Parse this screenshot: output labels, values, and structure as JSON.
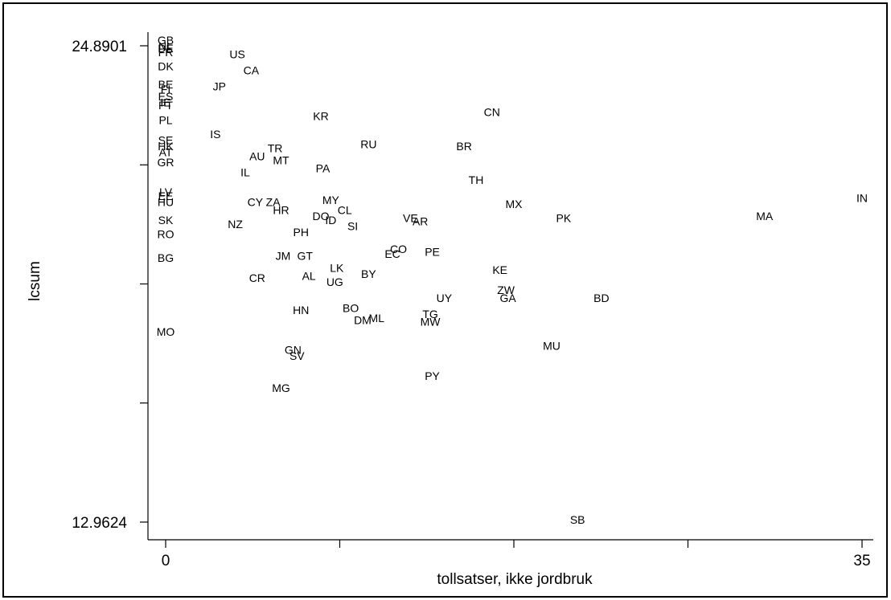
{
  "chart_data": {
    "type": "scatter",
    "title": "",
    "xlabel": "tollsatser, ikke jordbruk",
    "ylabel": "lcsum",
    "xlim": [
      0,
      35
    ],
    "ylim": [
      12.9624,
      24.8901
    ],
    "x_ticks": [
      0,
      35
    ],
    "x_tick_labels": [
      "0",
      "35"
    ],
    "y_ticks": [
      12.9624,
      24.8901
    ],
    "y_tick_labels": [
      "12.9624",
      "24.8901"
    ],
    "grid": false,
    "legend": "none",
    "points": [
      {
        "label": "GB",
        "x": 0.0,
        "y": 25.0
      },
      {
        "label": "NL",
        "x": 0.0,
        "y": 24.85
      },
      {
        "label": "DE",
        "x": 0.0,
        "y": 24.8
      },
      {
        "label": "FR",
        "x": 0.0,
        "y": 24.7
      },
      {
        "label": "DK",
        "x": 0.0,
        "y": 24.35
      },
      {
        "label": "BE",
        "x": 0.0,
        "y": 23.9
      },
      {
        "label": "FI",
        "x": 0.0,
        "y": 23.78
      },
      {
        "label": "ES",
        "x": 0.0,
        "y": 23.6
      },
      {
        "label": "IE",
        "x": 0.0,
        "y": 23.45
      },
      {
        "label": "PT",
        "x": 0.0,
        "y": 23.38
      },
      {
        "label": "PL",
        "x": 0.0,
        "y": 23.0
      },
      {
        "label": "SE",
        "x": 0.0,
        "y": 22.5
      },
      {
        "label": "HK",
        "x": 0.0,
        "y": 22.35
      },
      {
        "label": "AT",
        "x": 0.0,
        "y": 22.2
      },
      {
        "label": "GR",
        "x": 0.0,
        "y": 21.95
      },
      {
        "label": "LV",
        "x": 0.0,
        "y": 21.2
      },
      {
        "label": "EE",
        "x": 0.0,
        "y": 21.1
      },
      {
        "label": "HU",
        "x": 0.0,
        "y": 20.95
      },
      {
        "label": "SK",
        "x": 0.0,
        "y": 20.5
      },
      {
        "label": "RO",
        "x": 0.0,
        "y": 20.15
      },
      {
        "label": "BG",
        "x": 0.0,
        "y": 19.55
      },
      {
        "label": "MO",
        "x": 0.0,
        "y": 17.7
      },
      {
        "label": "US",
        "x": 3.6,
        "y": 24.65
      },
      {
        "label": "CA",
        "x": 4.3,
        "y": 24.25
      },
      {
        "label": "JP",
        "x": 2.7,
        "y": 23.85
      },
      {
        "label": "IS",
        "x": 2.5,
        "y": 22.65
      },
      {
        "label": "KR",
        "x": 7.8,
        "y": 23.1
      },
      {
        "label": "CN",
        "x": 16.4,
        "y": 23.2
      },
      {
        "label": "TR",
        "x": 5.5,
        "y": 22.3
      },
      {
        "label": "AU",
        "x": 4.6,
        "y": 22.1
      },
      {
        "label": "MT",
        "x": 5.8,
        "y": 22.0
      },
      {
        "label": "RU",
        "x": 10.2,
        "y": 22.4
      },
      {
        "label": "BR",
        "x": 15.0,
        "y": 22.35
      },
      {
        "label": "PA",
        "x": 7.9,
        "y": 21.8
      },
      {
        "label": "IL",
        "x": 4.0,
        "y": 21.7
      },
      {
        "label": "TH",
        "x": 15.6,
        "y": 21.5
      },
      {
        "label": "MX",
        "x": 17.5,
        "y": 20.9
      },
      {
        "label": "IN",
        "x": 35.0,
        "y": 21.05
      },
      {
        "label": "MA",
        "x": 30.1,
        "y": 20.6
      },
      {
        "label": "PK",
        "x": 20.0,
        "y": 20.55
      },
      {
        "label": "CY",
        "x": 4.5,
        "y": 20.95
      },
      {
        "label": "ZA",
        "x": 5.4,
        "y": 20.95
      },
      {
        "label": "HR",
        "x": 5.8,
        "y": 20.75
      },
      {
        "label": "MY",
        "x": 8.3,
        "y": 21.0
      },
      {
        "label": "CL",
        "x": 9.0,
        "y": 20.75
      },
      {
        "label": "DO",
        "x": 7.8,
        "y": 20.6
      },
      {
        "label": "ID",
        "x": 8.3,
        "y": 20.5
      },
      {
        "label": "SI",
        "x": 9.4,
        "y": 20.35
      },
      {
        "label": "VE",
        "x": 12.3,
        "y": 20.55
      },
      {
        "label": "AR",
        "x": 12.8,
        "y": 20.47
      },
      {
        "label": "NZ",
        "x": 3.5,
        "y": 20.4
      },
      {
        "label": "PH",
        "x": 6.8,
        "y": 20.2
      },
      {
        "label": "CO",
        "x": 11.7,
        "y": 19.78
      },
      {
        "label": "EC",
        "x": 11.4,
        "y": 19.65
      },
      {
        "label": "PE",
        "x": 13.4,
        "y": 19.7
      },
      {
        "label": "JM",
        "x": 5.9,
        "y": 19.6
      },
      {
        "label": "GT",
        "x": 7.0,
        "y": 19.6
      },
      {
        "label": "LK",
        "x": 8.6,
        "y": 19.3
      },
      {
        "label": "BY",
        "x": 10.2,
        "y": 19.15
      },
      {
        "label": "AL",
        "x": 7.2,
        "y": 19.1
      },
      {
        "label": "UG",
        "x": 8.5,
        "y": 18.95
      },
      {
        "label": "CR",
        "x": 4.6,
        "y": 19.05
      },
      {
        "label": "KE",
        "x": 16.8,
        "y": 19.25
      },
      {
        "label": "ZW",
        "x": 17.1,
        "y": 18.75
      },
      {
        "label": "UY",
        "x": 14.0,
        "y": 18.55
      },
      {
        "label": "GA",
        "x": 17.2,
        "y": 18.55
      },
      {
        "label": "BD",
        "x": 21.9,
        "y": 18.55
      },
      {
        "label": "HN",
        "x": 6.8,
        "y": 18.25
      },
      {
        "label": "BO",
        "x": 9.3,
        "y": 18.3
      },
      {
        "label": "DM",
        "x": 9.9,
        "y": 18.0
      },
      {
        "label": "ML",
        "x": 10.6,
        "y": 18.05
      },
      {
        "label": "TG",
        "x": 13.3,
        "y": 18.15
      },
      {
        "label": "MW",
        "x": 13.3,
        "y": 17.95
      },
      {
        "label": "MU",
        "x": 19.4,
        "y": 17.35
      },
      {
        "label": "GN",
        "x": 6.4,
        "y": 17.25
      },
      {
        "label": "SV",
        "x": 6.6,
        "y": 17.1
      },
      {
        "label": "PY",
        "x": 13.4,
        "y": 16.6
      },
      {
        "label": "MG",
        "x": 5.8,
        "y": 16.3
      },
      {
        "label": "SB",
        "x": 20.7,
        "y": 13.0
      }
    ]
  }
}
